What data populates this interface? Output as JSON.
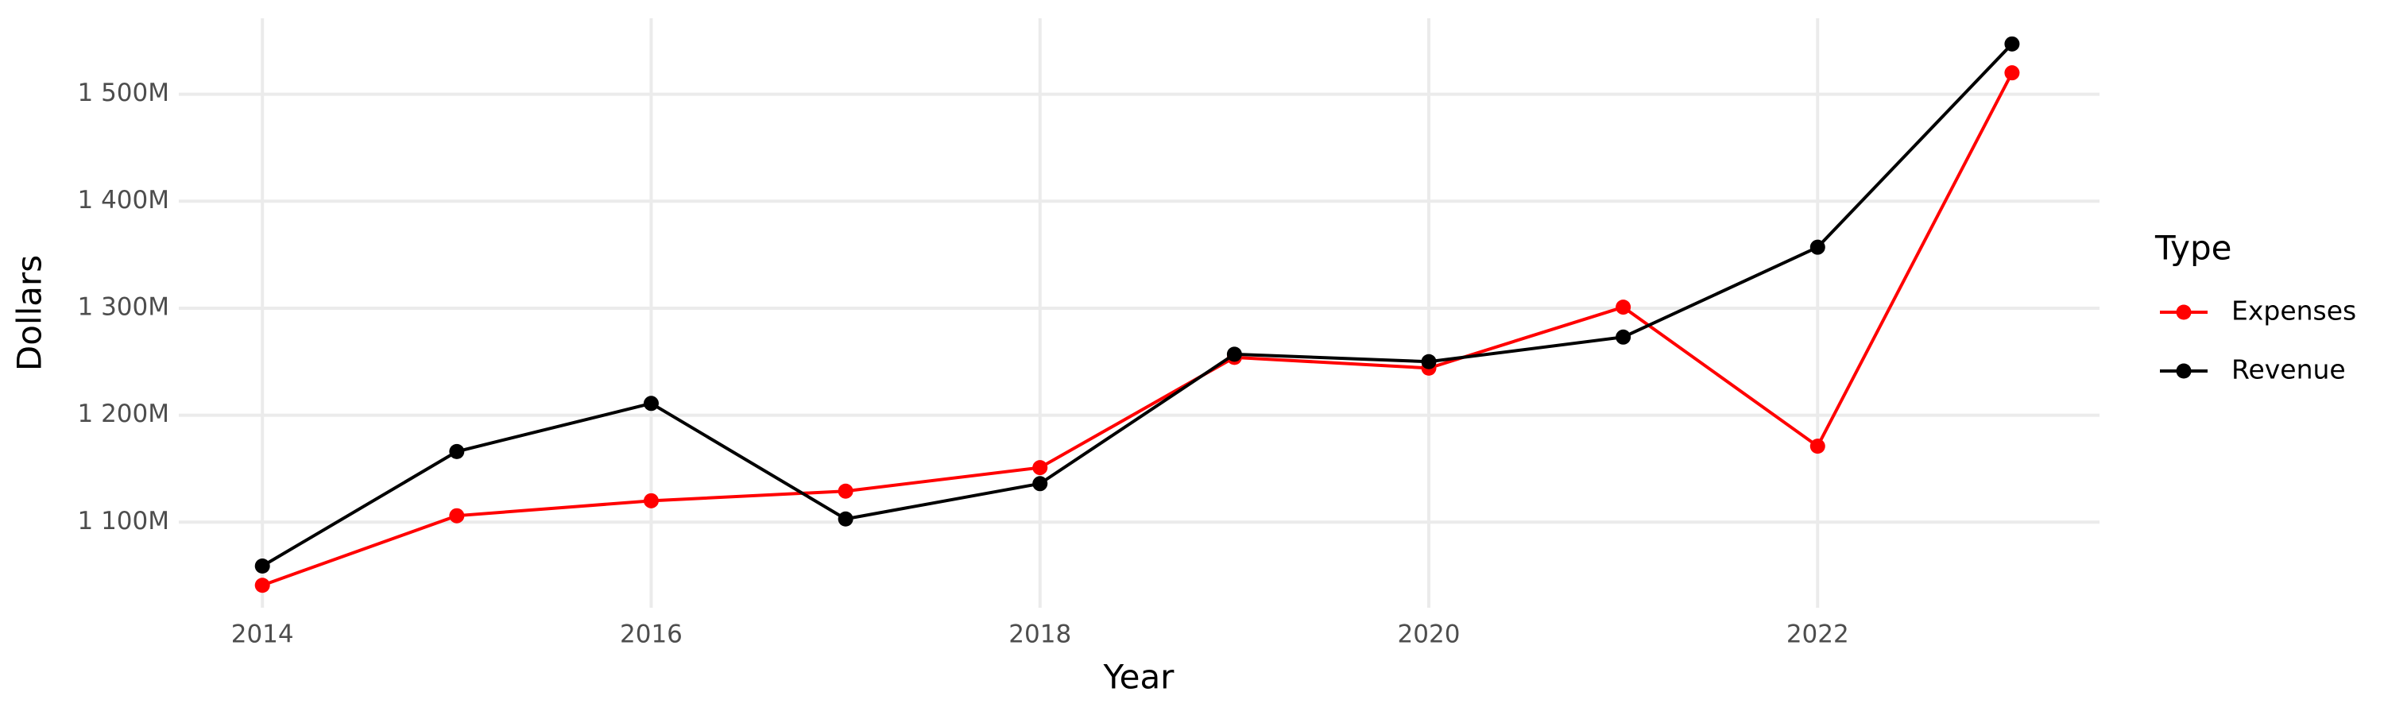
{
  "chart_data": {
    "type": "line",
    "x_label": "Year",
    "y_label": "Dollars",
    "legend_title": "Type",
    "x": [
      2014,
      2015,
      2016,
      2017,
      2018,
      2019,
      2020,
      2021,
      2022,
      2023
    ],
    "series": [
      {
        "name": "Expenses",
        "color": "#ff0000",
        "values": [
          1041000000,
          1106000000,
          1120000000,
          1129000000,
          1151000000,
          1254000000,
          1244000000,
          1301000000,
          1171000000,
          1520000000
        ]
      },
      {
        "name": "Revenue",
        "color": "#000000",
        "values": [
          1059000000,
          1166000000,
          1211000000,
          1103000000,
          1136000000,
          1257000000,
          1250000000,
          1273000000,
          1357000000,
          1547000000
        ]
      }
    ],
    "xlim": [
      2013.57,
      2023.45
    ],
    "xticks": [
      2014,
      2016,
      2018,
      2020,
      2022
    ],
    "ylim": [
      1020000000,
      1571000000
    ],
    "yticks": [
      {
        "value": 1100000000,
        "label": "1 100M"
      },
      {
        "value": 1200000000,
        "label": "1 200M"
      },
      {
        "value": 1300000000,
        "label": "1 300M"
      },
      {
        "value": 1400000000,
        "label": "1 400M"
      },
      {
        "value": 1500000000,
        "label": "1 500M"
      }
    ],
    "grid": true,
    "legend_position": "right"
  }
}
